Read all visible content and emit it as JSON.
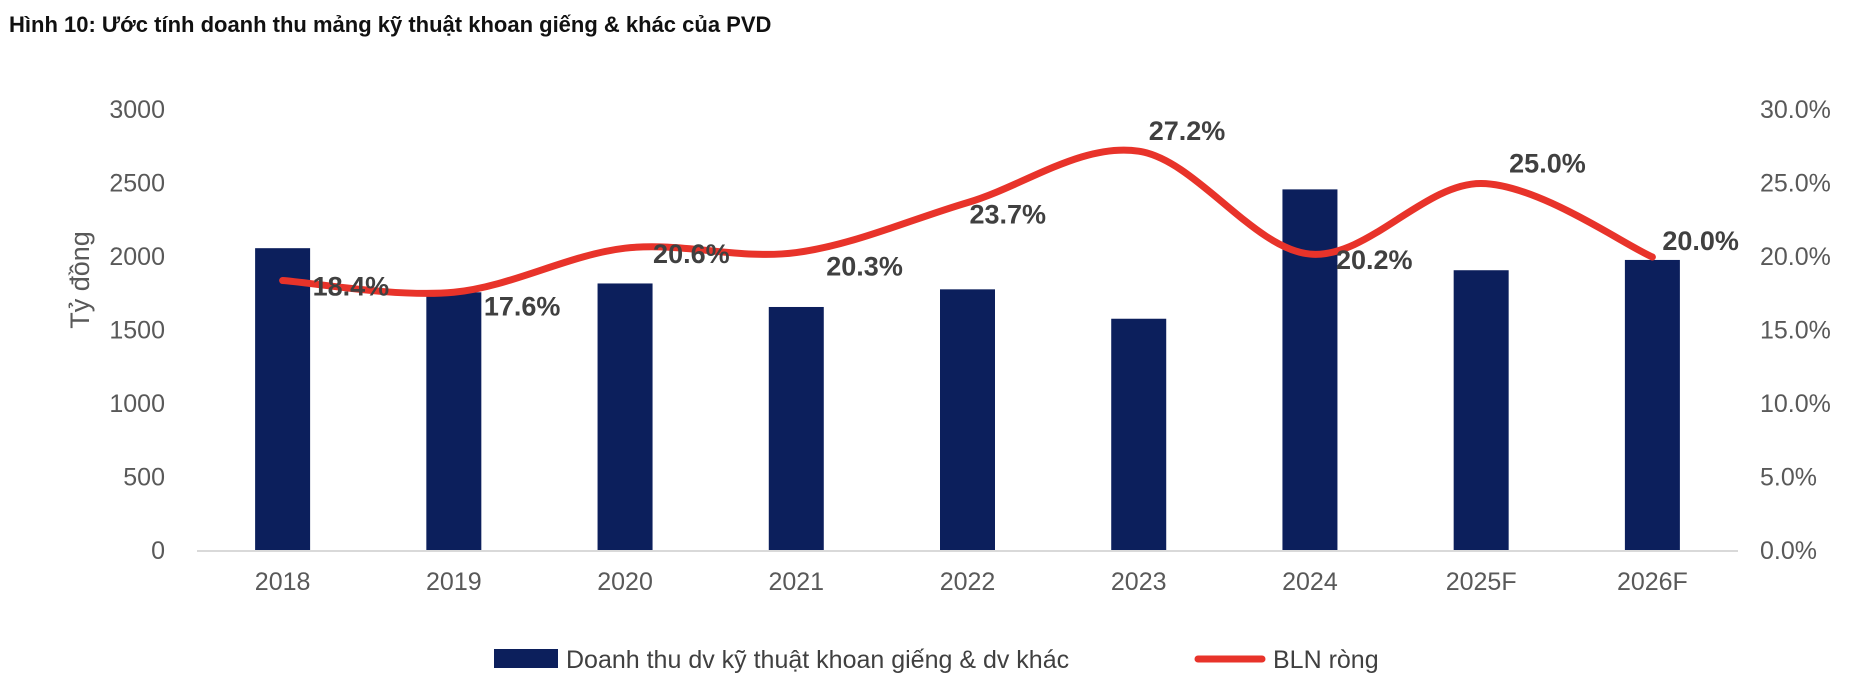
{
  "title": "Hình 10: Ước tính doanh thu mảng kỹ thuật khoan giếng & khác của PVD",
  "chart_data": {
    "type": "bar+line",
    "categories": [
      "2018",
      "2019",
      "2020",
      "2021",
      "2022",
      "2023",
      "2024",
      "2025F",
      "2026F"
    ],
    "series": [
      {
        "name": "Doanh thu dv kỹ thuật khoan giếng & dv khác",
        "type": "bar",
        "axis": "left",
        "color": "#0c1f5c",
        "values": [
          2060,
          1760,
          1820,
          1660,
          1780,
          1580,
          2460,
          1910,
          1980
        ]
      },
      {
        "name": "BLN ròng",
        "type": "line",
        "axis": "right",
        "color": "#e8332a",
        "values": [
          18.4,
          17.6,
          20.6,
          20.3,
          23.7,
          27.2,
          20.2,
          25.0,
          20.0
        ],
        "labels": [
          "18.4%",
          "17.6%",
          "20.6%",
          "20.3%",
          "23.7%",
          "27.2%",
          "20.2%",
          "25.0%",
          "20.0%"
        ]
      }
    ],
    "ylabel": "Tỷ đồng",
    "ylim": [
      0,
      3000
    ],
    "yticks": [
      "0",
      "500",
      "1000",
      "1500",
      "2000",
      "2500",
      "3000"
    ],
    "y2lim": [
      0,
      30
    ],
    "y2ticks": [
      "0.0%",
      "5.0%",
      "10.0%",
      "15.0%",
      "20.0%",
      "25.0%",
      "30.0%"
    ],
    "legend": "bottom",
    "grid": false
  }
}
